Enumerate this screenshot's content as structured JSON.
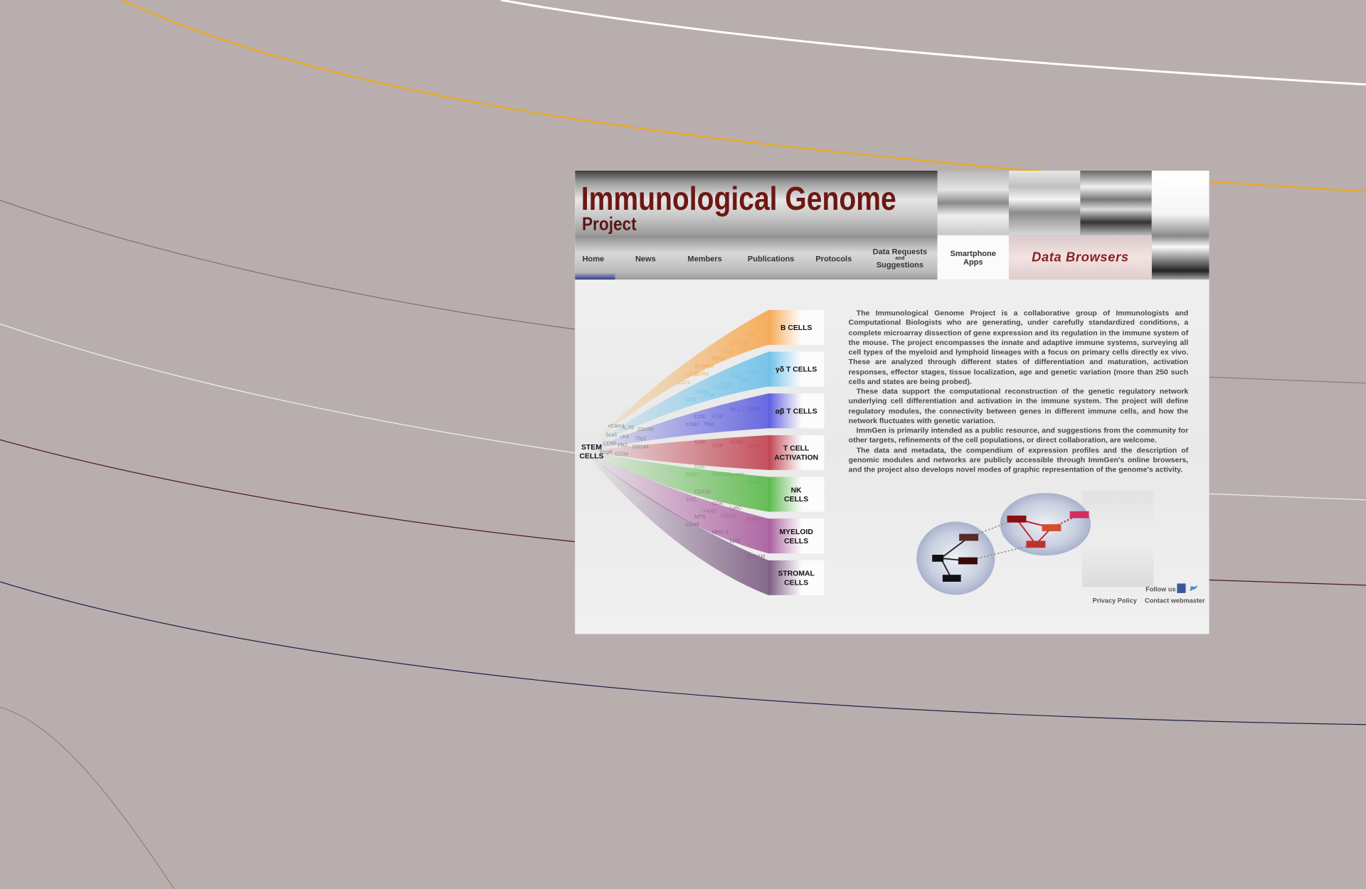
{
  "header": {
    "title": "Immunological Genome",
    "subtitle": "Project"
  },
  "nav": [
    "Home",
    "News",
    "Members",
    "Publications",
    "Protocols"
  ],
  "data_requests": [
    "Data Requests",
    "and",
    "Suggestions"
  ],
  "smartphone": [
    "Smartphone",
    "Apps"
  ],
  "data_browsers": "Data Browsers",
  "cells": {
    "stem": [
      "STEM",
      "CELLS"
    ],
    "stem_markers": [
      "vCam1",
      "IL7R",
      "CD150",
      "Sca1",
      "cKit",
      "Thy1",
      "CD48",
      "Flk2",
      "CD244",
      "FcgR",
      "CD34"
    ],
    "branches": [
      {
        "label": [
          "B CELLS"
        ],
        "color": "#f5a850",
        "markers": [
          "B220",
          "Kit",
          "IgM",
          "LIN",
          "CD19",
          "HSA",
          "CD23",
          "CD5",
          "CD21",
          "IL7Ra",
          "CD43"
        ]
      },
      {
        "label": [
          "γδ T CELLS"
        ],
        "color": "#6cc0e8",
        "markers": [
          "TCRd",
          "CD8ab",
          "CD4",
          "HSA",
          "CD5",
          "CD8",
          "Thy1",
          "Vg2"
        ]
      },
      {
        "label": [
          "αβ T CELLS"
        ],
        "color": "#5b5be0",
        "markers": [
          "CD8",
          "CD4",
          "NK1.1",
          "CD44",
          "CD62",
          "Thy1"
        ]
      },
      {
        "label": [
          "T CELL",
          "ACTIVATION"
        ],
        "color": "#c0404e",
        "markers": [
          "CD8",
          "CD4",
          "CD69",
          "CD25"
        ]
      },
      {
        "label": [
          "NK",
          "CELLS"
        ],
        "color": "#58b848",
        "markers": [
          "DX5",
          "NKG2D",
          "Ly49D",
          "Ly49H",
          "CD27"
        ]
      },
      {
        "label": [
          "MYELOID",
          "CELLS"
        ],
        "color": "#a85a9c",
        "markers": [
          "CD11b",
          "CD4",
          "Ly6C",
          "MHCII",
          "SSC",
          "F4/80",
          "CD11c"
        ]
      },
      {
        "label": [
          "STROMAL",
          "CELLS"
        ],
        "color": "#7a5a80",
        "markers": [
          "MTS",
          "MHC II",
          "Ly51",
          "EpCAM",
          "CD45"
        ]
      }
    ]
  },
  "intro": [
    "The Immunological Genome Project is a collaborative group of Immunologists and Computational Biologists who are generating, under carefully standardized conditions, a complete microarray dissection of gene expression and its regulation in the immune system of the mouse. The project encompasses the innate and adaptive immune systems, surveying all cell types of the myeloid and lymphoid lineages with a focus on primary cells directly ex vivo. These are analyzed through different states of differentiation and maturation, activation responses, effector stages, tissue localization, age and genetic variation (more than 250 such cells and states are being probed).",
    "These data support the computational reconstruction of the genetic regulatory network underlying cell differentiation and activation in the immune system. The project will define regulatory modules, the connectivity between genes in different immune cells, and how the network fluctuates with genetic variation.",
    "ImmGen is primarily intended as a public resource, and suggestions from the community for other targets, refinements of the cell populations, or direct collaboration, are welcome.",
    "The data and metadata, the compendium of expression profiles and the description of genomic modules and networks are publicly accessible through ImmGen's online browsers, and the project also develops novel modes of graphic representation of the genome's activity."
  ],
  "footer": {
    "follow": "Follow us",
    "privacy": "Privacy  Policy",
    "contact": "Contact webmaster"
  }
}
